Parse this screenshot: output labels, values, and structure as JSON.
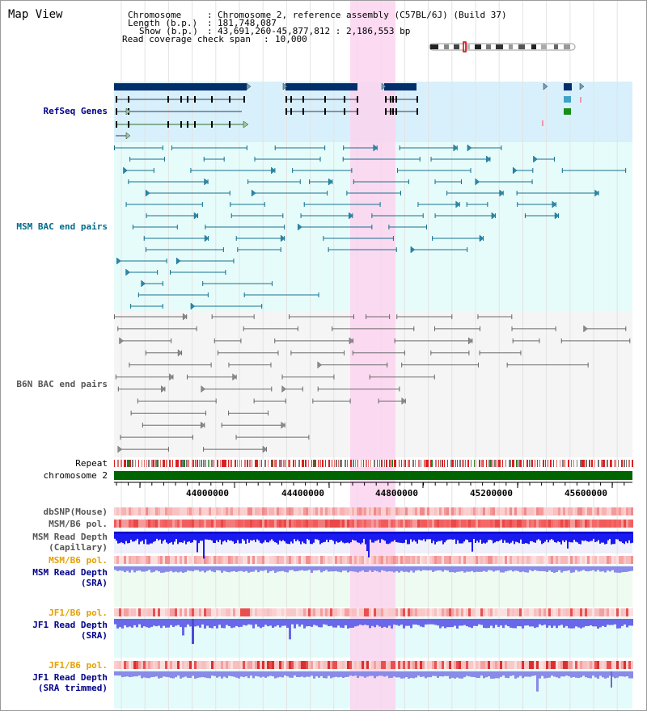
{
  "header": {
    "title": "Map View",
    "chromosome_label": "Chromosome",
    "chromosome_value": "Chromosome 2, reference assembly (C57BL/6J) (Build 37)",
    "length_label": "Length (b.p.)",
    "length_value": "181,748,087",
    "show_label": "Show (b.p.)",
    "show_value": "43,691,260-45,877,812 : 2,186,553 bp",
    "coverage_label": "Read coverage check span",
    "coverage_value": "10,000"
  },
  "tracks": {
    "refseq": "RefSeq Genes",
    "msm_bac": "MSM BAC end pairs",
    "b6n_bac": "B6N BAC end pairs",
    "repeat": "Repeat",
    "chromosome": "chromosome 2",
    "dbsnp": "dbSNP(Mouse)",
    "msm_b6_pol_1": "MSM/B6 pol.",
    "msm_depth_cap_1": "MSM Read Depth",
    "msm_depth_cap_2": "(Capillary)",
    "msm_b6_pol_2": "MSM/B6 pol.",
    "msm_depth_sra_1": "MSM Read Depth",
    "msm_depth_sra_2": "(SRA)",
    "jf1_b6_pol_1": "JF1/B6 pol.",
    "jf1_depth_sra_1": "JF1 Read Depth",
    "jf1_depth_sra_2": "(SRA)",
    "jf1_b6_pol_2": "JF1/B6 pol.",
    "jf1_depth_trim_1": "JF1 Read Depth",
    "jf1_depth_trim_2": "(SRA trimmed)"
  },
  "ruler": {
    "ticks": [
      "44000000",
      "44400000",
      "44800000",
      "45200000",
      "45600000"
    ]
  },
  "colors": {
    "refseq_label": "#00008b",
    "msm_label": "#006b8b",
    "b6n_label": "#555555",
    "pol_label_orange": "#e6a000",
    "sra_label_blue": "#00008b",
    "highlight": "#fbd7ef",
    "chromosome_bar": "#006400"
  },
  "scale": {
    "view_start_bp": 43691260,
    "view_end_bp": 45877812
  }
}
